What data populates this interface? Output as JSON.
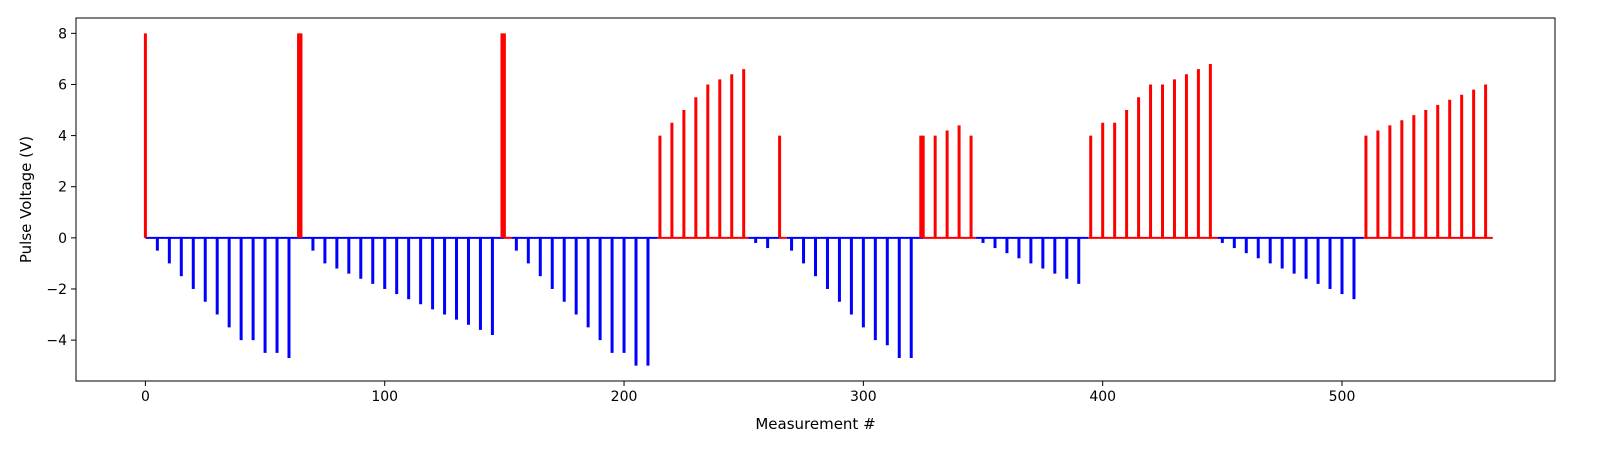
{
  "chart_data": {
    "type": "bar",
    "title": "",
    "xlabel": "Measurement #",
    "ylabel": "Pulse Voltage (V)",
    "xlim": [
      -29,
      589
    ],
    "ylim": [
      -5.6,
      8.6
    ],
    "xticks": [
      0,
      100,
      200,
      300,
      400,
      500
    ],
    "yticks": [
      -4,
      -2,
      0,
      2,
      4,
      6,
      8
    ],
    "ytick_labels": [
      "−4",
      "−2",
      "0",
      "2",
      "4",
      "6",
      "8"
    ],
    "grid": false,
    "colors": {
      "positive": "#ff0000",
      "negative": "#0000ff",
      "frame": "#000000"
    },
    "baseline_segments": [
      {
        "x0": 0,
        "x1": 0,
        "color": "#ff0000"
      },
      {
        "x0": 0,
        "x1": 65,
        "color": "#0000ff"
      },
      {
        "x0": 65,
        "x1": 65,
        "color": "#ff0000"
      },
      {
        "x0": 65,
        "x1": 150,
        "color": "#0000ff"
      },
      {
        "x0": 150,
        "x1": 153,
        "color": "#ff0000"
      },
      {
        "x0": 153,
        "x1": 214,
        "color": "#0000ff"
      },
      {
        "x0": 214,
        "x1": 252,
        "color": "#ff0000"
      },
      {
        "x0": 252,
        "x1": 265,
        "color": "#0000ff"
      },
      {
        "x0": 265,
        "x1": 268,
        "color": "#ff0000"
      },
      {
        "x0": 268,
        "x1": 325,
        "color": "#0000ff"
      },
      {
        "x0": 325,
        "x1": 347,
        "color": "#ff0000"
      },
      {
        "x0": 347,
        "x1": 394,
        "color": "#0000ff"
      },
      {
        "x0": 394,
        "x1": 448,
        "color": "#ff0000"
      },
      {
        "x0": 448,
        "x1": 509,
        "color": "#0000ff"
      },
      {
        "x0": 509,
        "x1": 563,
        "color": "#ff0000"
      }
    ],
    "series": [
      {
        "color": "#ff0000",
        "x": [
          0,
          64,
          65,
          149,
          150,
          215,
          220,
          225,
          230,
          235,
          240,
          245,
          250,
          265,
          324,
          325,
          330,
          335,
          340,
          345,
          395,
          400,
          405,
          410,
          415,
          420,
          425,
          430,
          435,
          440,
          445,
          510,
          515,
          520,
          525,
          530,
          535,
          540,
          545,
          550,
          555,
          560
        ],
        "values": [
          8,
          8,
          8,
          8,
          8,
          4,
          4.5,
          5,
          5.5,
          6,
          6.2,
          6.4,
          6.6,
          4,
          4,
          4,
          4,
          4.2,
          4.4,
          4,
          4,
          4.5,
          4.5,
          5,
          5.5,
          6,
          6,
          6.2,
          6.4,
          6.6,
          6.8,
          4,
          4.2,
          4.4,
          4.6,
          4.8,
          5,
          5.2,
          5.4,
          5.6,
          5.8,
          6
        ]
      },
      {
        "color": "#0000ff",
        "x": [
          5,
          10,
          15,
          20,
          25,
          30,
          35,
          40,
          45,
          50,
          55,
          60,
          70,
          75,
          80,
          85,
          90,
          95,
          100,
          105,
          110,
          115,
          120,
          125,
          130,
          135,
          140,
          145,
          155,
          160,
          165,
          170,
          175,
          180,
          185,
          190,
          195,
          200,
          205,
          210,
          255,
          260,
          270,
          275,
          280,
          285,
          290,
          295,
          300,
          305,
          310,
          315,
          320,
          350,
          355,
          360,
          365,
          370,
          375,
          380,
          385,
          390,
          450,
          455,
          460,
          465,
          470,
          475,
          480,
          485,
          490,
          495,
          500,
          505
        ],
        "values": [
          -0.5,
          -1,
          -1.5,
          -2,
          -2.5,
          -3,
          -3.5,
          -4,
          -4,
          -4.5,
          -4.5,
          -4.7,
          -0.5,
          -1,
          -1.2,
          -1.4,
          -1.6,
          -1.8,
          -2,
          -2.2,
          -2.4,
          -2.6,
          -2.8,
          -3,
          -3.2,
          -3.4,
          -3.6,
          -3.8,
          -0.5,
          -1,
          -1.5,
          -2,
          -2.5,
          -3,
          -3.5,
          -4,
          -4.5,
          -4.5,
          -5,
          -5,
          -0.2,
          -0.4,
          -0.5,
          -1,
          -1.5,
          -2,
          -2.5,
          -3,
          -3.5,
          -4,
          -4.2,
          -4.7,
          -4.7,
          -0.2,
          -0.4,
          -0.6,
          -0.8,
          -1,
          -1.2,
          -1.4,
          -1.6,
          -1.8,
          -0.2,
          -0.4,
          -0.6,
          -0.8,
          -1,
          -1.2,
          -1.4,
          -1.6,
          -1.8,
          -2,
          -2.2,
          -2.4
        ]
      }
    ]
  }
}
